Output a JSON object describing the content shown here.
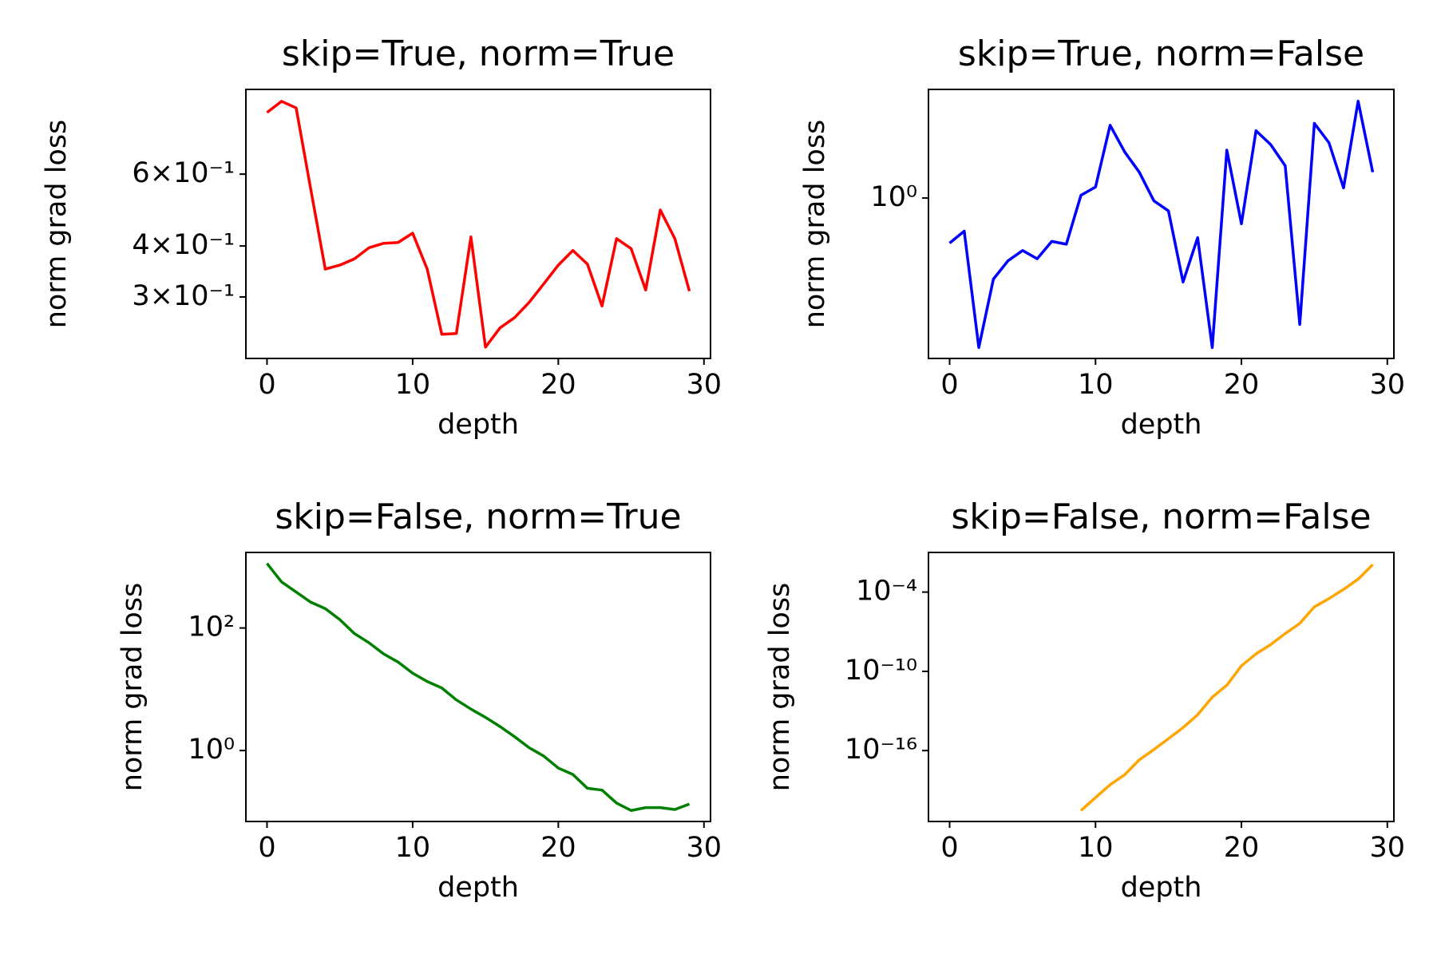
{
  "chart_data": [
    {
      "type": "line",
      "title": "skip=True, norm=True",
      "xlabel": "depth",
      "ylabel": "norm grad loss",
      "yscale": "log",
      "color": "#ff0000",
      "x": [
        0,
        1,
        2,
        3,
        4,
        5,
        6,
        7,
        8,
        9,
        10,
        11,
        12,
        13,
        14,
        15,
        16,
        17,
        18,
        19,
        20,
        21,
        22,
        23,
        24,
        25,
        26,
        27,
        28,
        29
      ],
      "values": [
        0.85,
        0.905,
        0.872,
        0.552,
        0.351,
        0.359,
        0.372,
        0.396,
        0.406,
        0.408,
        0.43,
        0.351,
        0.243,
        0.244,
        0.421,
        0.226,
        0.252,
        0.267,
        0.291,
        0.323,
        0.359,
        0.39,
        0.361,
        0.285,
        0.417,
        0.394,
        0.312,
        0.49,
        0.417,
        0.31
      ],
      "xlim": [
        -1.45,
        30.45
      ],
      "xticks": [
        0,
        10,
        20,
        30
      ],
      "ylim": [
        0.212,
        0.968
      ],
      "yticks": [
        {
          "value": 0.3,
          "label": "3×10⁻¹"
        },
        {
          "value": 0.4,
          "label": "4×10⁻¹"
        },
        {
          "value": 0.6,
          "label": "6×10⁻¹"
        }
      ]
    },
    {
      "type": "line",
      "title": "skip=True, norm=False",
      "xlabel": "depth",
      "ylabel": "norm grad loss",
      "yscale": "log",
      "color": "#0000ff",
      "x": [
        0,
        1,
        2,
        3,
        4,
        5,
        6,
        7,
        8,
        9,
        10,
        11,
        12,
        13,
        14,
        15,
        16,
        17,
        18,
        19,
        20,
        21,
        22,
        23,
        24,
        25,
        26,
        27,
        28,
        29
      ],
      "values": [
        0.687,
        0.759,
        0.288,
        0.509,
        0.593,
        0.646,
        0.603,
        0.697,
        0.681,
        1.023,
        1.096,
        1.833,
        1.468,
        1.24,
        0.977,
        0.898,
        0.497,
        0.719,
        0.288,
        1.49,
        0.807,
        1.751,
        1.561,
        1.308,
        0.349,
        1.862,
        1.585,
        1.088,
        2.239,
        1.24
      ],
      "xlim": [
        -1.45,
        30.45
      ],
      "xticks": [
        0,
        10,
        20,
        30
      ],
      "ylim": [
        0.263,
        2.47
      ],
      "yticks": [
        {
          "value": 1,
          "label": "10⁰"
        }
      ]
    },
    {
      "type": "line",
      "title": "skip=False, norm=True",
      "xlabel": "depth",
      "ylabel": "norm grad loss",
      "yscale": "log",
      "color": "#008000",
      "x": [
        0,
        1,
        2,
        3,
        4,
        5,
        6,
        7,
        8,
        9,
        10,
        11,
        12,
        13,
        14,
        15,
        16,
        17,
        18,
        19,
        20,
        21,
        22,
        23,
        24,
        25,
        26,
        27,
        28,
        29
      ],
      "values": [
        1130,
        565,
        386,
        264,
        207,
        137,
        81.2,
        57.4,
        37.9,
        27.8,
        18.3,
        13.4,
        10.5,
        6.71,
        4.75,
        3.48,
        2.46,
        1.68,
        1.11,
        0.812,
        0.518,
        0.407,
        0.242,
        0.226,
        0.139,
        0.105,
        0.117,
        0.117,
        0.109,
        0.134
      ],
      "xlim": [
        -1.45,
        30.45
      ],
      "xticks": [
        0,
        10,
        20,
        30
      ],
      "ylim": [
        0.0695,
        1710
      ],
      "yticks": [
        {
          "value": 1,
          "label": "10⁰"
        },
        {
          "value": 100,
          "label": "10²"
        }
      ]
    },
    {
      "type": "line",
      "title": "skip=False, norm=False",
      "xlabel": "depth",
      "ylabel": "norm grad loss",
      "yscale": "log",
      "color": "#ffa500",
      "x": [
        0,
        1,
        2,
        3,
        4,
        5,
        6,
        7,
        8,
        9,
        10,
        11,
        12,
        13,
        14,
        15,
        16,
        17,
        18,
        19,
        20,
        21,
        22,
        23,
        24,
        25,
        26,
        27,
        28,
        29
      ],
      "values": [
        null,
        null,
        null,
        null,
        null,
        null,
        null,
        null,
        null,
        2.9e-21,
        2.75e-20,
        2.6e-19,
        1.5e-18,
        2e-17,
        1.2e-16,
        8e-16,
        5.5e-15,
        5.2e-14,
        1.1e-12,
        8.9e-12,
        2.6e-10,
        2.1e-09,
        1.05e-08,
        7.2e-08,
        4.3e-07,
        7.6e-06,
        3.2e-05,
        0.00016,
        0.00095,
        0.012
      ],
      "xlim": [
        -1.45,
        30.45
      ],
      "xticks": [
        0,
        10,
        20,
        30
      ],
      "ylim": [
        4.3e-22,
        0.1
      ],
      "yticks": [
        {
          "value": 1e-16,
          "label": "10⁻¹⁶"
        },
        {
          "value": 1e-10,
          "label": "10⁻¹⁰"
        },
        {
          "value": 0.0001,
          "label": "10⁻⁴"
        }
      ]
    }
  ]
}
